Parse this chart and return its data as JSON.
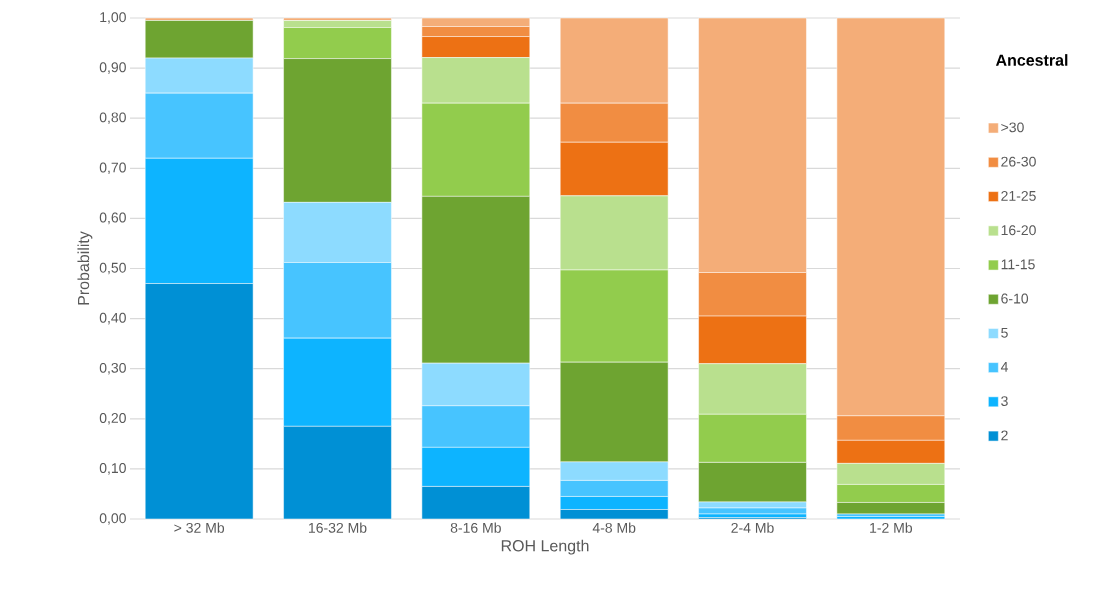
{
  "chart_data": {
    "type": "bar",
    "stacked": true,
    "xlabel": "ROH Length",
    "ylabel": "Probability",
    "legend_title": "Ancestral",
    "legend": "right",
    "grid": "y",
    "categories": [
      "> 32 Mb",
      "16-32 Mb",
      "8-16 Mb",
      "4-8 Mb",
      "2-4 Mb",
      "1-2 Mb"
    ],
    "ylim": [
      0,
      1
    ],
    "yticks": [
      {
        "value": 0,
        "label": "0,00"
      },
      {
        "value": 0.1,
        "label": "0,10"
      },
      {
        "value": 0.2,
        "label": "0,20"
      },
      {
        "value": 0.3,
        "label": "0,30"
      },
      {
        "value": 0.4,
        "label": "0,40"
      },
      {
        "value": 0.5,
        "label": "0,50"
      },
      {
        "value": 0.6,
        "label": "0,60"
      },
      {
        "value": 0.7,
        "label": "0,70"
      },
      {
        "value": 0.8,
        "label": "0,80"
      },
      {
        "value": 0.9,
        "label": "0,90"
      },
      {
        "value": 1,
        "label": "1,00"
      }
    ],
    "series": [
      {
        "name": "2",
        "color": "#0090d5",
        "values": [
          0.47,
          0.185,
          0.065,
          0.019,
          0.003,
          null
        ]
      },
      {
        "name": "3",
        "color": "#0db4ff",
        "values": [
          0.25,
          0.176,
          0.078,
          0.026,
          0.007,
          0.005
        ]
      },
      {
        "name": "4",
        "color": "#47c4ff",
        "values": [
          0.13,
          0.151,
          0.083,
          0.032,
          0.012,
          0.005
        ]
      },
      {
        "name": "5",
        "color": "#8ddbff",
        "values": [
          0.07,
          0.12,
          0.085,
          0.037,
          0.012,
          null
        ]
      },
      {
        "name": "6-10",
        "color": "#6ea431",
        "values": [
          0.075,
          0.287,
          0.333,
          0.199,
          0.079,
          0.023
        ]
      },
      {
        "name": "11-15",
        "color": "#92cc4d",
        "values": [
          0,
          0.062,
          0.186,
          0.184,
          0.096,
          0.036
        ]
      },
      {
        "name": "16-20",
        "color": "#b9e08e",
        "values": [
          0,
          0.014,
          0.091,
          0.148,
          0.101,
          0.042
        ]
      },
      {
        "name": "21-25",
        "color": "#ed7114",
        "values": [
          0,
          0,
          0.042,
          0.107,
          0.095,
          0.046
        ]
      },
      {
        "name": "26-30",
        "color": "#f18d42",
        "values": [
          0,
          0,
          0.02,
          0.078,
          0.087,
          0.049
        ]
      },
      {
        "name": ">30",
        "color": "#f4ad78",
        "values": [
          0.005,
          0.005,
          0.017,
          0.17,
          0.508,
          0.794
        ]
      }
    ]
  }
}
